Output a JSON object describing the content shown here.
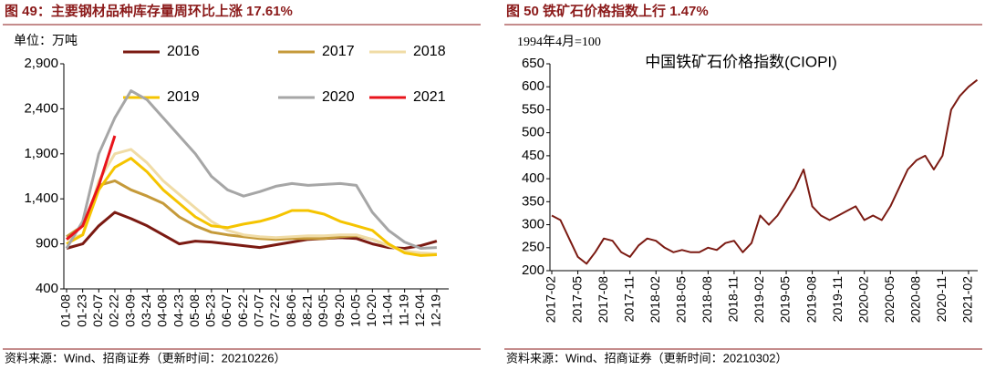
{
  "chart_data": [
    {
      "type": "line",
      "title": "图 49：主要钢材品种库存量周环比上涨 17.61%",
      "unit": "单位：万吨",
      "source": "资料来源：Wind、招商证券（更新时间：20210226）",
      "categories": [
        "01-08",
        "01-23",
        "02-07",
        "02-22",
        "03-09",
        "03-24",
        "04-08",
        "04-23",
        "05-08",
        "05-23",
        "06-07",
        "06-22",
        "07-07",
        "07-22",
        "08-06",
        "08-21",
        "09-05",
        "09-20",
        "10-05",
        "10-20",
        "11-04",
        "11-19",
        "12-04",
        "12-19"
      ],
      "series": [
        {
          "name": "2016",
          "color": "#7b1a12",
          "values": [
            850,
            900,
            1100,
            1250,
            1180,
            1100,
            1000,
            900,
            930,
            920,
            900,
            880,
            860,
            890,
            920,
            950,
            960,
            970,
            960,
            900,
            860,
            850,
            880,
            930
          ]
        },
        {
          "name": "2017",
          "color": "#c59a3a",
          "values": [
            980,
            1100,
            1550,
            1600,
            1500,
            1430,
            1350,
            1200,
            1100,
            1030,
            1000,
            980,
            960,
            950,
            960,
            960,
            960,
            980,
            990,
            950,
            880,
            820,
            790,
            780
          ]
        },
        {
          "name": "2018",
          "color": "#f0dca6",
          "values": [
            950,
            1000,
            1600,
            1900,
            1950,
            1800,
            1600,
            1450,
            1300,
            1150,
            1050,
            1000,
            980,
            970,
            980,
            990,
            990,
            1000,
            1000,
            950,
            880,
            820,
            800,
            790
          ]
        },
        {
          "name": "2019",
          "color": "#f5c400",
          "values": [
            900,
            1000,
            1500,
            1750,
            1850,
            1700,
            1500,
            1350,
            1200,
            1100,
            1080,
            1120,
            1150,
            1200,
            1270,
            1270,
            1230,
            1150,
            1100,
            1050,
            900,
            800,
            770,
            780
          ]
        },
        {
          "name": "2020",
          "color": "#a6a6a6",
          "values": [
            850,
            1150,
            1900,
            2300,
            2600,
            2500,
            2300,
            2100,
            1900,
            1650,
            1500,
            1430,
            1480,
            1540,
            1570,
            1550,
            1560,
            1570,
            1550,
            1250,
            1050,
            920,
            850,
            860
          ]
        },
        {
          "name": "2021",
          "color": "#e8141b",
          "values": [
            950,
            1100,
            1550,
            2100,
            null,
            null,
            null,
            null,
            null,
            null,
            null,
            null,
            null,
            null,
            null,
            null,
            null,
            null,
            null,
            null,
            null,
            null,
            null,
            null
          ]
        }
      ],
      "ylim": [
        400,
        2900
      ],
      "yticks": [
        400,
        900,
        {
          "value": 1400,
          "label": "1,400"
        },
        {
          "value": 1900,
          "label": "1,900"
        },
        {
          "value": 2400,
          "label": "2,400"
        },
        {
          "value": 2900,
          "label": "2,900"
        }
      ]
    },
    {
      "type": "line",
      "title": "图 50 铁矿石价格指数上行 1.47%",
      "unit": "1994年4月=100",
      "subtitle": "中国铁矿石价格指数(CIOPI)",
      "source": "资料来源：Wind、招商证券（更新时间：20210302）",
      "color": "#7b1a12",
      "categories": [
        "2017-02",
        null,
        null,
        "2017-05",
        null,
        null,
        "2017-08",
        null,
        null,
        "2017-11",
        null,
        null,
        "2018-02",
        null,
        null,
        "2018-05",
        null,
        null,
        "2018-08",
        null,
        null,
        "2018-11",
        null,
        null,
        "2019-02",
        null,
        null,
        "2019-05",
        null,
        null,
        "2019-08",
        null,
        null,
        "2019-11",
        null,
        null,
        "2020-02",
        null,
        null,
        "2020-05",
        null,
        null,
        "2020-08",
        null,
        null,
        "2020-11",
        null,
        null,
        "2021-02",
        null
      ],
      "values": [
        320,
        310,
        270,
        230,
        215,
        240,
        270,
        265,
        240,
        230,
        255,
        270,
        265,
        250,
        240,
        245,
        240,
        240,
        250,
        245,
        260,
        265,
        240,
        260,
        320,
        300,
        320,
        350,
        380,
        420,
        340,
        320,
        310,
        320,
        330,
        340,
        310,
        320,
        310,
        340,
        380,
        420,
        440,
        450,
        420,
        450,
        550,
        580,
        600,
        615
      ],
      "ylim": [
        200,
        650
      ],
      "yticks": [
        200,
        250,
        300,
        350,
        400,
        450,
        500,
        550,
        600,
        650
      ]
    }
  ]
}
